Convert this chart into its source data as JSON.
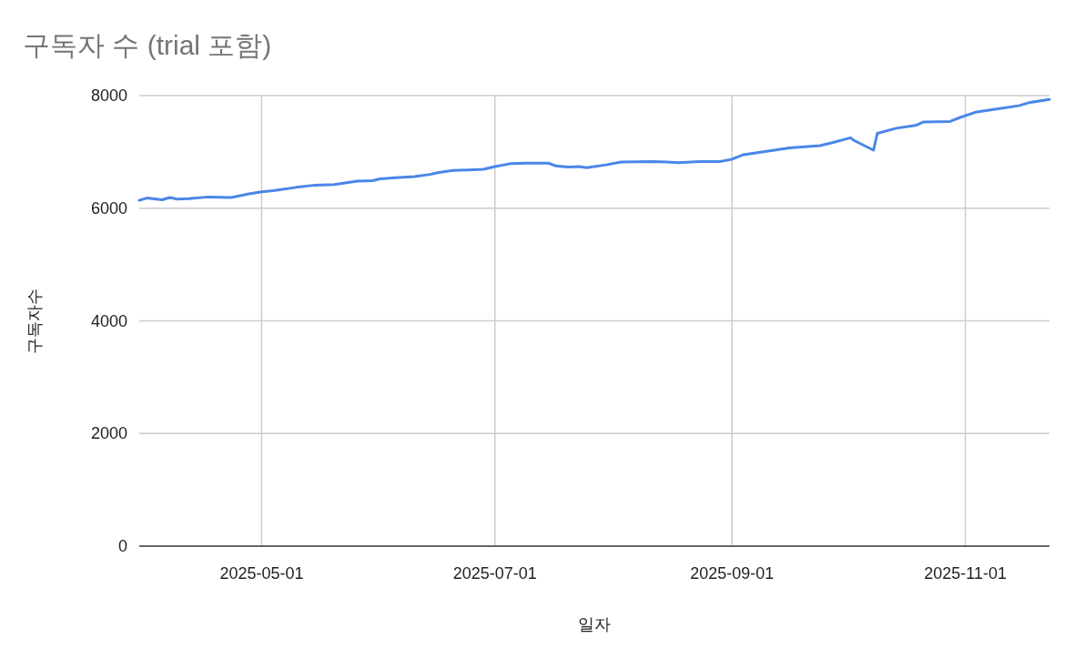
{
  "chart_data": {
    "type": "line",
    "title": "구독자 수 (trial 포함)",
    "xlabel": "일자",
    "ylabel": "구독자수",
    "x": [
      "2025-03-30",
      "2025-04-01",
      "2025-04-05",
      "2025-04-07",
      "2025-04-09",
      "2025-04-12",
      "2025-04-17",
      "2025-04-23",
      "2025-04-28",
      "2025-05-01",
      "2025-05-04",
      "2025-05-10",
      "2025-05-15",
      "2025-05-20",
      "2025-05-26",
      "2025-05-30",
      "2025-06-01",
      "2025-06-05",
      "2025-06-10",
      "2025-06-14",
      "2025-06-16",
      "2025-06-20",
      "2025-06-28",
      "2025-07-01",
      "2025-07-05",
      "2025-07-09",
      "2025-07-15",
      "2025-07-17",
      "2025-07-20",
      "2025-07-23",
      "2025-07-25",
      "2025-07-30",
      "2025-08-03",
      "2025-08-11",
      "2025-08-15",
      "2025-08-18",
      "2025-08-24",
      "2025-08-29",
      "2025-09-01",
      "2025-09-04",
      "2025-09-10",
      "2025-09-16",
      "2025-09-24",
      "2025-09-27",
      "2025-10-02",
      "2025-10-03",
      "2025-10-08",
      "2025-10-09",
      "2025-10-14",
      "2025-10-19",
      "2025-10-21",
      "2025-10-28",
      "2025-10-31",
      "2025-11-04",
      "2025-11-08",
      "2025-11-15",
      "2025-11-18",
      "2025-11-23"
    ],
    "values": [
      6140,
      6180,
      6150,
      6190,
      6160,
      6170,
      6200,
      6190,
      6260,
      6290,
      6310,
      6370,
      6410,
      6420,
      6480,
      6490,
      6520,
      6540,
      6560,
      6600,
      6630,
      6670,
      6690,
      6740,
      6790,
      6800,
      6800,
      6750,
      6730,
      6740,
      6720,
      6770,
      6820,
      6830,
      6820,
      6810,
      6830,
      6830,
      6870,
      6950,
      7010,
      7070,
      7110,
      7160,
      7250,
      7200,
      7030,
      7330,
      7420,
      7470,
      7530,
      7540,
      7620,
      7710,
      7750,
      7820,
      7880,
      7930
    ],
    "color": "#4a86e8",
    "xlim": [
      "2025-03-30",
      "2025-11-23"
    ],
    "ylim": [
      0,
      8000
    ],
    "xticks": [
      "2025-05-01",
      "2025-07-01",
      "2025-09-01",
      "2025-11-01"
    ],
    "yticks": [
      0,
      2000,
      4000,
      6000,
      8000
    ],
    "grid": true
  }
}
